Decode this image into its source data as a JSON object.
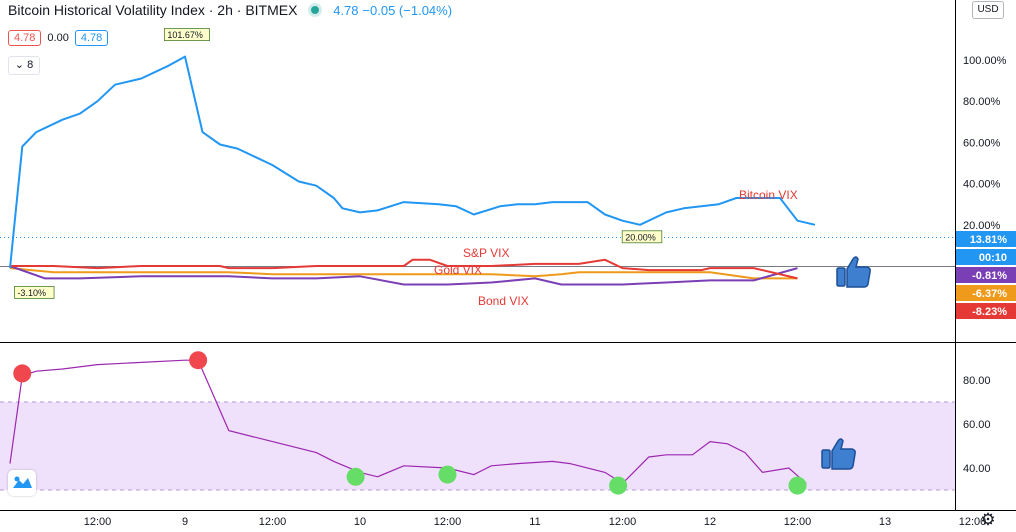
{
  "header": {
    "title": "Bitcoin Historical Volatility Index · 2h · BITMEX",
    "last": "4.78",
    "change": "−0.05 (−1.04%)"
  },
  "ohlc": {
    "v1": "4.78",
    "v2": "0.00",
    "v3": "4.78"
  },
  "collapse_label": "8",
  "currency": "USD",
  "colors": {
    "bitcoin": "#2196f3",
    "sp": "#e53935",
    "gold": "#ef9a1b",
    "bond": "#7b3fb5",
    "oscillator": "#9c27b0",
    "band_fill": "#efe0fb",
    "red_dot": "#f0474f",
    "green_dot": "#66dd66",
    "thumb": "#3f7fd0"
  },
  "chart_data": [
    {
      "type": "line",
      "pane": "main",
      "y_unit": "%",
      "ylim": [
        -15,
        120
      ],
      "y_ticks": [
        20,
        40,
        60,
        80,
        100
      ],
      "tick_labels": [
        "20.00%",
        "40.00%",
        "60.00%",
        "80.00%",
        "100.00%"
      ],
      "x_ticks": [
        1,
        2,
        3,
        4,
        5,
        6,
        7,
        8,
        9,
        10,
        11
      ],
      "x_tick_labels": [
        "12:00",
        "9",
        "12:00",
        "10",
        "12:00",
        "11",
        "12:00",
        "12",
        "12:00",
        "13",
        "12:00"
      ],
      "series": [
        {
          "name": "Bitcoin VIX",
          "x": [
            0,
            0.14,
            0.3,
            0.6,
            0.8,
            1.0,
            1.2,
            1.5,
            1.8,
            2.0,
            2.2,
            2.4,
            2.6,
            2.8,
            3.0,
            3.3,
            3.5,
            3.7,
            3.8,
            4.0,
            4.2,
            4.5,
            4.9,
            5.1,
            5.3,
            5.6,
            5.8,
            6.0,
            6.2,
            6.4,
            6.6,
            6.8,
            7.0,
            7.2,
            7.5,
            7.7,
            7.9,
            8.1,
            8.3,
            8.6,
            8.8,
            9.0,
            9.2
          ],
          "y": [
            -1,
            58,
            65,
            71,
            74,
            80,
            88,
            91,
            97,
            101.67,
            65,
            59,
            57,
            53,
            49,
            41,
            39,
            33,
            28,
            26,
            27,
            31,
            30,
            29,
            25,
            29,
            30,
            30,
            31,
            31,
            31,
            25,
            22,
            20,
            26,
            28,
            29,
            30,
            33,
            33,
            33,
            22,
            20
          ]
        },
        {
          "name": "S&P VIX",
          "x": [
            0,
            0.5,
            1.0,
            1.5,
            2.0,
            2.4,
            2.5,
            3.0,
            3.5,
            4.0,
            4.5,
            4.6,
            4.8,
            5.0,
            5.5,
            6.0,
            6.5,
            6.8,
            7.0,
            7.3,
            7.9,
            8.0,
            8.5,
            9.0
          ],
          "y": [
            0,
            0,
            -1,
            0,
            0,
            0,
            -1,
            -1,
            0,
            0,
            0,
            3,
            3,
            0,
            0,
            1,
            1,
            3,
            -1,
            -2,
            -2,
            -1,
            -1,
            -6
          ]
        },
        {
          "name": "Gold VIX",
          "x": [
            0,
            0.5,
            1.0,
            1.5,
            2.0,
            2.5,
            3.0,
            3.5,
            4.0,
            4.5,
            5.0,
            5.5,
            6.0,
            6.3,
            6.5,
            7.0,
            7.5,
            8.0,
            8.5,
            9.0
          ],
          "y": [
            -1,
            -3,
            -3,
            -3,
            -3,
            -3,
            -4,
            -4,
            -4,
            -4,
            -4,
            -4,
            -5,
            -4,
            -3,
            -3,
            -3,
            -3,
            -6,
            -6
          ]
        },
        {
          "name": "Bond VIX",
          "x": [
            0,
            0.4,
            0.8,
            1.5,
            2.0,
            2.5,
            3.0,
            3.5,
            4.0,
            4.5,
            5.0,
            5.5,
            6.0,
            6.3,
            6.5,
            7.0,
            7.5,
            8.0,
            8.5,
            9.0
          ],
          "y": [
            0,
            -6,
            -6,
            -5,
            -5,
            -5,
            -6,
            -6,
            -5,
            -9,
            -9,
            -8,
            -6,
            -9,
            -9,
            -9,
            -8,
            -7,
            -7,
            -1
          ]
        }
      ],
      "series_labels": [
        {
          "text": "Bitcoin VIX",
          "series": "Bitcoin VIX"
        },
        {
          "text": "S&P VIX",
          "series": "S&P VIX"
        },
        {
          "text": "Gold VIX",
          "series": "Gold VIX"
        },
        {
          "text": "Bond VIX",
          "series": "Bond VIX"
        }
      ],
      "annotations": [
        {
          "text": "101.67%",
          "x": 2.0,
          "y": 101.67
        },
        {
          "text": "20.00%",
          "x": 7.2,
          "y": 20
        },
        {
          "text": "-3.10%",
          "x": 0.14,
          "y": -3.1
        }
      ],
      "price_labels": [
        {
          "text": "13.81%",
          "value": 13.81,
          "color": "#2196f3"
        },
        {
          "text": "00:10",
          "value": 8.5,
          "color": "#2196f3"
        },
        {
          "text": "-0.81%",
          "value": -0.81,
          "color": "#7b3fb5"
        },
        {
          "text": "-6.37%",
          "value": -6.37,
          "color": "#ef9a1b"
        },
        {
          "text": "-8.23%",
          "value": -8.23,
          "color": "#e53935"
        }
      ],
      "grid": false
    },
    {
      "type": "line",
      "pane": "oscillator",
      "ylim": [
        25,
        95
      ],
      "y_ticks": [
        40,
        60,
        80
      ],
      "tick_labels": [
        "40.00",
        "60.00",
        "80.00"
      ],
      "band": [
        30,
        70
      ],
      "series": [
        {
          "name": "",
          "x": [
            0,
            0.14,
            0.3,
            0.6,
            1.0,
            1.5,
            2.0,
            2.15,
            2.5,
            3.0,
            3.5,
            3.7,
            4.0,
            4.2,
            4.5,
            5.0,
            5.3,
            5.5,
            5.8,
            6.2,
            6.4,
            6.8,
            7.0,
            7.3,
            7.5,
            7.8,
            8.0,
            8.2,
            8.4,
            8.6,
            8.9,
            9.1
          ],
          "y": [
            42,
            82,
            84,
            85,
            87,
            88,
            89,
            89,
            57,
            52,
            47,
            43,
            38,
            36,
            41,
            40,
            37,
            41,
            42,
            43,
            42,
            38,
            33,
            45,
            46,
            46,
            52,
            51,
            47,
            38,
            40,
            33
          ]
        }
      ],
      "markers": [
        {
          "x": 0.14,
          "y": 83,
          "kind": "high"
        },
        {
          "x": 2.15,
          "y": 89,
          "kind": "high"
        },
        {
          "x": 3.95,
          "y": 36,
          "kind": "low"
        },
        {
          "x": 5.0,
          "y": 37,
          "kind": "low"
        },
        {
          "x": 6.95,
          "y": 32,
          "kind": "low"
        },
        {
          "x": 9.0,
          "y": 32,
          "kind": "low"
        }
      ],
      "grid": false
    }
  ]
}
